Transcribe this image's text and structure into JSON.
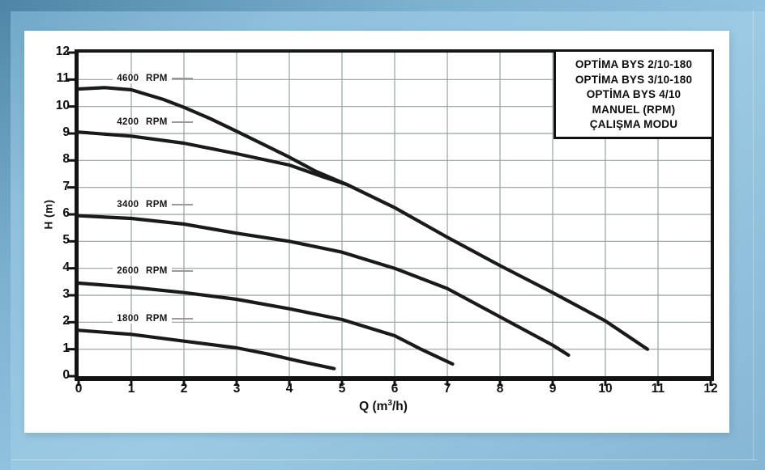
{
  "legend": {
    "lines": [
      "OPTİMA BYS 2/10-180",
      "OPTİMA BYS 3/10-180",
      "OPTİMA BYS 4/10",
      "MANUEL (RPM)",
      "ÇALIŞMA MODU"
    ]
  },
  "chart_data": {
    "type": "line",
    "title": "",
    "xlabel": {
      "pre": "Q (m",
      "sup": "3",
      "post": "/h)"
    },
    "ylabel": "H (m)",
    "xlim": [
      0,
      12
    ],
    "ylim": [
      0,
      12
    ],
    "x_ticks": [
      0,
      1,
      2,
      3,
      4,
      5,
      6,
      7,
      8,
      9,
      10,
      11,
      12
    ],
    "y_ticks": [
      0,
      1,
      2,
      3,
      4,
      5,
      6,
      7,
      8,
      9,
      10,
      11,
      12
    ],
    "grid": true,
    "legend_position": "top-right",
    "colors": {
      "curve": "#1a1a1a",
      "grid": "#98a0a0",
      "axis": "#141414",
      "panel": "#ffffff",
      "background": "#8fc0dc"
    },
    "series": [
      {
        "name": "4600 RPM",
        "label_pos": [
          0.65,
          11.05
        ],
        "points": [
          [
            0,
            10.65
          ],
          [
            0.5,
            10.7
          ],
          [
            1,
            10.62
          ],
          [
            1.6,
            10.27
          ],
          [
            2,
            9.97
          ],
          [
            2.5,
            9.55
          ],
          [
            3,
            9.08
          ],
          [
            3.5,
            8.6
          ],
          [
            4,
            8.12
          ],
          [
            4.5,
            7.6
          ],
          [
            5.1,
            7.1
          ],
          [
            6,
            6.25
          ],
          [
            7,
            5.15
          ],
          [
            8,
            4.1
          ],
          [
            9,
            3.1
          ],
          [
            10,
            2.05
          ],
          [
            10.8,
            1.0
          ]
        ]
      },
      {
        "name": "4200 RPM",
        "label_pos": [
          0.65,
          9.42
        ],
        "points": [
          [
            0,
            9.05
          ],
          [
            1,
            8.9
          ],
          [
            2,
            8.64
          ],
          [
            3,
            8.25
          ],
          [
            4,
            7.83
          ],
          [
            4.6,
            7.42
          ],
          [
            5.1,
            7.1
          ]
        ]
      },
      {
        "name": "3400 RPM",
        "label_pos": [
          0.65,
          6.35
        ],
        "points": [
          [
            0,
            5.95
          ],
          [
            1,
            5.85
          ],
          [
            2,
            5.64
          ],
          [
            3,
            5.3
          ],
          [
            4,
            5.0
          ],
          [
            5,
            4.6
          ],
          [
            6,
            4.0
          ],
          [
            7,
            3.25
          ],
          [
            8,
            2.2
          ],
          [
            9,
            1.15
          ],
          [
            9.3,
            0.78
          ]
        ]
      },
      {
        "name": "2600 RPM",
        "label_pos": [
          0.65,
          3.9
        ],
        "points": [
          [
            0,
            3.45
          ],
          [
            1,
            3.3
          ],
          [
            2,
            3.1
          ],
          [
            3,
            2.85
          ],
          [
            4,
            2.5
          ],
          [
            5,
            2.1
          ],
          [
            6,
            1.5
          ],
          [
            6.5,
            1.0
          ],
          [
            7.1,
            0.45
          ]
        ]
      },
      {
        "name": "1800 RPM",
        "label_pos": [
          0.65,
          2.13
        ],
        "points": [
          [
            0,
            1.7
          ],
          [
            1,
            1.55
          ],
          [
            2,
            1.3
          ],
          [
            3,
            1.05
          ],
          [
            3.6,
            0.82
          ],
          [
            4.2,
            0.55
          ],
          [
            4.85,
            0.28
          ]
        ]
      }
    ]
  }
}
